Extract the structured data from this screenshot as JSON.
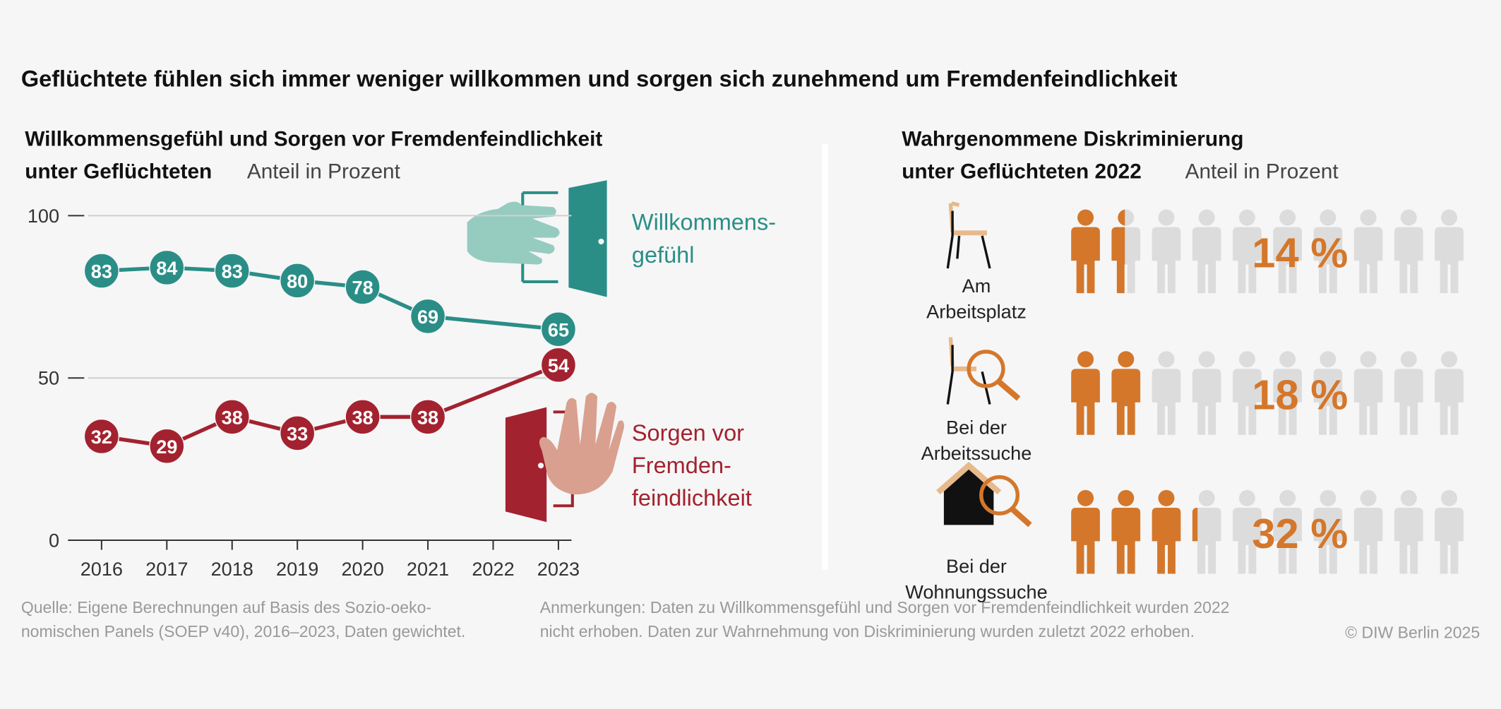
{
  "title": "Geflüchtete fühlen sich immer weniger willkommen und sorgen sich zunehmend um Fremdenfeindlichkeit",
  "chart_data": [
    {
      "type": "line",
      "title": "Willkommensgefühl und Sorgen vor Fremdenfeindlichkeit\nunter Geflüchteten",
      "unit": "Anteil in Prozent",
      "x": [
        2016,
        2017,
        2018,
        2019,
        2020,
        2021,
        2023
      ],
      "series": [
        {
          "name": "Willkommens-\ngefühl",
          "color": "#2a8e87",
          "values": [
            83,
            84,
            83,
            80,
            78,
            69,
            65
          ]
        },
        {
          "name": "Sorgen vor\nFremden-\nfeindlichkeit",
          "color": "#a3222f",
          "values": [
            32,
            29,
            38,
            33,
            38,
            38,
            54
          ]
        }
      ],
      "xlim": [
        2015.5,
        2023.2
      ],
      "xticks": [
        2016,
        2017,
        2018,
        2019,
        2020,
        2021,
        2022,
        2023
      ],
      "ylim": [
        0,
        100
      ],
      "yticks": [
        0,
        50,
        100
      ],
      "grid": true
    },
    {
      "type": "pictograph",
      "title": "Wahrgenommene Diskriminierung\nunter Geflüchteten 2022",
      "unit": "Anteil in Prozent",
      "categories": [
        "Am\nArbeitsplatz",
        "Bei der\nArbeitssuche",
        "Bei der\nWohnungssuche"
      ],
      "values": [
        14,
        18,
        32
      ],
      "value_labels": [
        "14 %",
        "18 %",
        "32 %"
      ],
      "color": "#d4772b",
      "xlim": [
        0,
        100
      ]
    }
  ],
  "source": "Quelle: Eigene Berechnungen auf Basis des Sozio-oeko-\nnomischen Panels (SOEP v40), 2016–2023, Daten gewichtet.",
  "notes": "Anmerkungen: Daten zu Willkommensgefühl und Sorgen vor Fremdenfeindlichkeit wurden 2022\nnicht erhoben. Daten zur Wahrnehmung von Diskriminierung wurden zuletzt 2022 erhoben.",
  "copyright": "© DIW Berlin 2025"
}
